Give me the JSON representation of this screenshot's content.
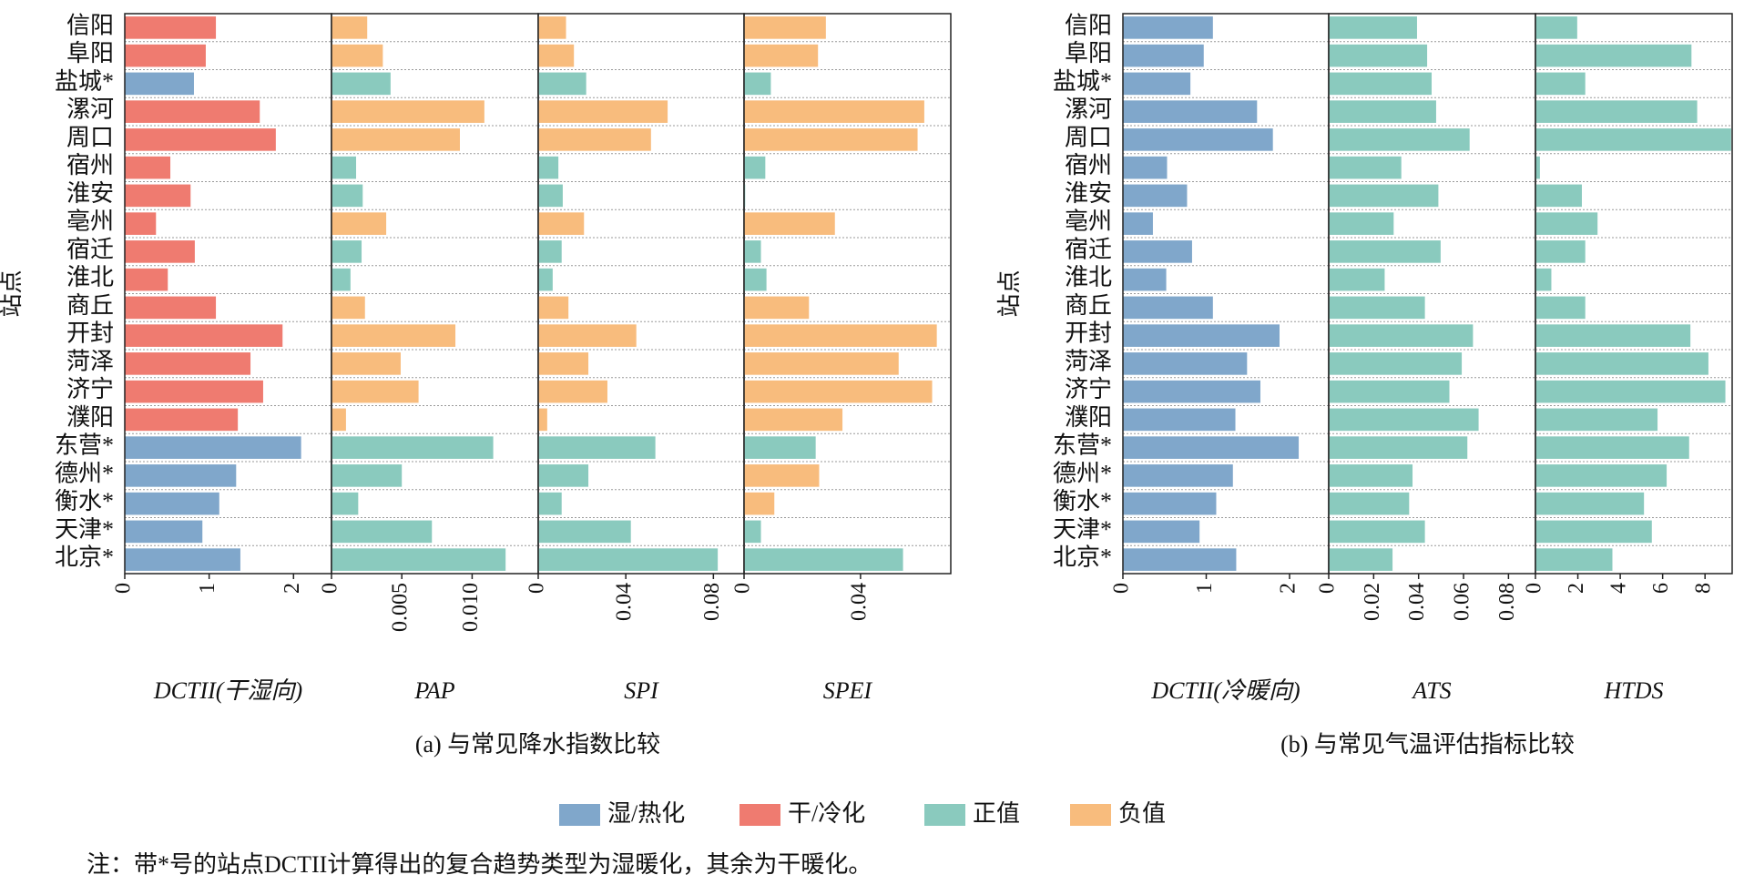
{
  "chart_data": [
    {
      "type": "bar",
      "orientation": "horizontal",
      "ylabel": "站点",
      "xlabel": "DCTII(干湿向)",
      "categories": [
        "信阳",
        "阜阳",
        "盐城*",
        "漯河",
        "周口",
        "宿州",
        "淮安",
        "亳州",
        "宿迁",
        "淮北",
        "商丘",
        "开封",
        "菏泽",
        "济宁",
        "濮阳",
        "东营*",
        "德州*",
        "衡水*",
        "天津*",
        "北京*"
      ],
      "xlim": [
        0,
        2.45
      ],
      "xticks": [
        0,
        1,
        2
      ],
      "values": [
        1.08,
        0.96,
        0.82,
        1.6,
        1.79,
        0.54,
        0.78,
        0.37,
        0.83,
        0.51,
        1.08,
        1.87,
        1.49,
        1.64,
        1.34,
        2.09,
        1.32,
        1.12,
        0.92,
        1.37
      ],
      "colors": [
        "#ef7b70",
        "#ef7b70",
        "#80a7cb",
        "#ef7b70",
        "#ef7b70",
        "#ef7b70",
        "#ef7b70",
        "#ef7b70",
        "#ef7b70",
        "#ef7b70",
        "#ef7b70",
        "#ef7b70",
        "#ef7b70",
        "#ef7b70",
        "#ef7b70",
        "#80a7cb",
        "#80a7cb",
        "#80a7cb",
        "#80a7cb",
        "#80a7cb"
      ]
    },
    {
      "type": "bar",
      "orientation": "horizontal",
      "xlabel": "PAP",
      "xlim": [
        0,
        0.0147
      ],
      "xticks": [
        0,
        0.005,
        {
          "value": 0.01,
          "label": "0.010"
        }
      ],
      "values": [
        0.00254,
        0.00365,
        0.0042,
        0.01087,
        0.00913,
        0.00175,
        0.00222,
        0.00389,
        0.00214,
        0.00135,
        0.00238,
        0.00881,
        0.00492,
        0.00619,
        0.00103,
        0.0115,
        0.005,
        0.0019,
        0.00714,
        0.01238
      ],
      "colors": [
        "#f8bc7d",
        "#f8bc7d",
        "#8acabe",
        "#f8bc7d",
        "#f8bc7d",
        "#8acabe",
        "#8acabe",
        "#f8bc7d",
        "#8acabe",
        "#8acabe",
        "#f8bc7d",
        "#f8bc7d",
        "#f8bc7d",
        "#f8bc7d",
        "#f8bc7d",
        "#8acabe",
        "#8acabe",
        "#8acabe",
        "#8acabe",
        "#8acabe"
      ]
    },
    {
      "type": "bar",
      "orientation": "horizontal",
      "xlabel": "SPI",
      "xlim": [
        0,
        0.094
      ],
      "xticks": [
        0,
        0.04,
        0.08
      ],
      "values": [
        0.0127,
        0.0163,
        0.0219,
        0.0591,
        0.0515,
        0.0092,
        0.0112,
        0.0209,
        0.0107,
        0.0066,
        0.0138,
        0.0448,
        0.0229,
        0.0316,
        0.0041,
        0.0535,
        0.0229,
        0.0107,
        0.0423,
        0.082
      ],
      "colors": [
        "#f8bc7d",
        "#f8bc7d",
        "#8acabe",
        "#f8bc7d",
        "#f8bc7d",
        "#8acabe",
        "#8acabe",
        "#f8bc7d",
        "#8acabe",
        "#8acabe",
        "#f8bc7d",
        "#f8bc7d",
        "#f8bc7d",
        "#f8bc7d",
        "#f8bc7d",
        "#8acabe",
        "#8acabe",
        "#8acabe",
        "#8acabe",
        "#8acabe"
      ]
    },
    {
      "type": "bar",
      "orientation": "horizontal",
      "xlabel": "SPEI",
      "xlim": [
        0,
        0.071
      ],
      "xticks": [
        0,
        0.04
      ],
      "values": [
        0.0281,
        0.0254,
        0.0092,
        0.0619,
        0.0596,
        0.0073,
        0.0004,
        0.0312,
        0.0058,
        0.0077,
        0.0223,
        0.0662,
        0.0531,
        0.0646,
        0.0338,
        0.0246,
        0.0258,
        0.0104,
        0.0058,
        0.0546
      ],
      "colors": [
        "#f8bc7d",
        "#f8bc7d",
        "#8acabe",
        "#f8bc7d",
        "#f8bc7d",
        "#8acabe",
        "#8acabe",
        "#f8bc7d",
        "#8acabe",
        "#8acabe",
        "#f8bc7d",
        "#f8bc7d",
        "#f8bc7d",
        "#f8bc7d",
        "#f8bc7d",
        "#8acabe",
        "#f8bc7d",
        "#f8bc7d",
        "#8acabe",
        "#8acabe"
      ]
    },
    {
      "type": "bar",
      "orientation": "horizontal",
      "ylabel": "站点",
      "xlabel": "DCTII(冷暖向)",
      "categories": [
        "信阳",
        "阜阳",
        "盐城*",
        "漯河",
        "周口",
        "宿州",
        "淮安",
        "亳州",
        "宿迁",
        "淮北",
        "商丘",
        "开封",
        "菏泽",
        "济宁",
        "濮阳",
        "东营*",
        "德州*",
        "衡水*",
        "天津*",
        "北京*"
      ],
      "xlim": [
        0,
        2.47
      ],
      "xticks": [
        0,
        1,
        2
      ],
      "values": [
        1.08,
        0.97,
        0.81,
        1.61,
        1.8,
        0.53,
        0.77,
        0.36,
        0.83,
        0.52,
        1.08,
        1.88,
        1.49,
        1.65,
        1.35,
        2.11,
        1.32,
        1.12,
        0.92,
        1.36
      ],
      "colors": [
        "#80a7cb",
        "#80a7cb",
        "#80a7cb",
        "#80a7cb",
        "#80a7cb",
        "#80a7cb",
        "#80a7cb",
        "#80a7cb",
        "#80a7cb",
        "#80a7cb",
        "#80a7cb",
        "#80a7cb",
        "#80a7cb",
        "#80a7cb",
        "#80a7cb",
        "#80a7cb",
        "#80a7cb",
        "#80a7cb",
        "#80a7cb",
        "#80a7cb"
      ]
    },
    {
      "type": "bar",
      "orientation": "horizontal",
      "xlabel": "ATS",
      "xlim": [
        0,
        0.092
      ],
      "xticks": [
        0,
        0.02,
        0.04,
        0.06,
        0.08
      ],
      "values": [
        0.0393,
        0.0438,
        0.0458,
        0.0478,
        0.0627,
        0.0323,
        0.0488,
        0.0289,
        0.0498,
        0.0249,
        0.0428,
        0.0642,
        0.0592,
        0.0537,
        0.0667,
        0.0617,
        0.0373,
        0.0358,
        0.0428,
        0.0284
      ],
      "colors": [
        "#8acabe",
        "#8acabe",
        "#8acabe",
        "#8acabe",
        "#8acabe",
        "#8acabe",
        "#8acabe",
        "#8acabe",
        "#8acabe",
        "#8acabe",
        "#8acabe",
        "#8acabe",
        "#8acabe",
        "#8acabe",
        "#8acabe",
        "#8acabe",
        "#8acabe",
        "#8acabe",
        "#8acabe",
        "#8acabe"
      ]
    },
    {
      "type": "bar",
      "orientation": "horizontal",
      "xlabel": "HTDS",
      "xlim": [
        0,
        9.28
      ],
      "xticks": [
        0,
        2,
        4,
        6,
        8
      ],
      "values": [
        1.97,
        7.36,
        2.35,
        7.63,
        9.23,
        0.21,
        2.19,
        2.93,
        2.35,
        0.75,
        2.35,
        7.31,
        8.16,
        8.96,
        5.76,
        7.25,
        6.19,
        5.12,
        5.49,
        3.63
      ],
      "colors": [
        "#8acabe",
        "#8acabe",
        "#8acabe",
        "#8acabe",
        "#8acabe",
        "#8acabe",
        "#8acabe",
        "#8acabe",
        "#8acabe",
        "#8acabe",
        "#8acabe",
        "#8acabe",
        "#8acabe",
        "#8acabe",
        "#8acabe",
        "#8acabe",
        "#8acabe",
        "#8acabe",
        "#8acabe",
        "#8acabe"
      ]
    }
  ],
  "captions": [
    "(a) 与常见降水指数比较",
    "(b) 与常见气温评估指标比较"
  ],
  "legend": [
    {
      "name": "湿/热化",
      "color": "#80a7cb"
    },
    {
      "name": "干/冷化",
      "color": "#ef7b70"
    },
    {
      "name": "正值",
      "color": "#8acabe"
    },
    {
      "name": "负值",
      "color": "#f8bc7d"
    }
  ],
  "note": "注：带*号的站点DCTII计算得出的复合趋势类型为湿暖化，其余为干暖化。"
}
